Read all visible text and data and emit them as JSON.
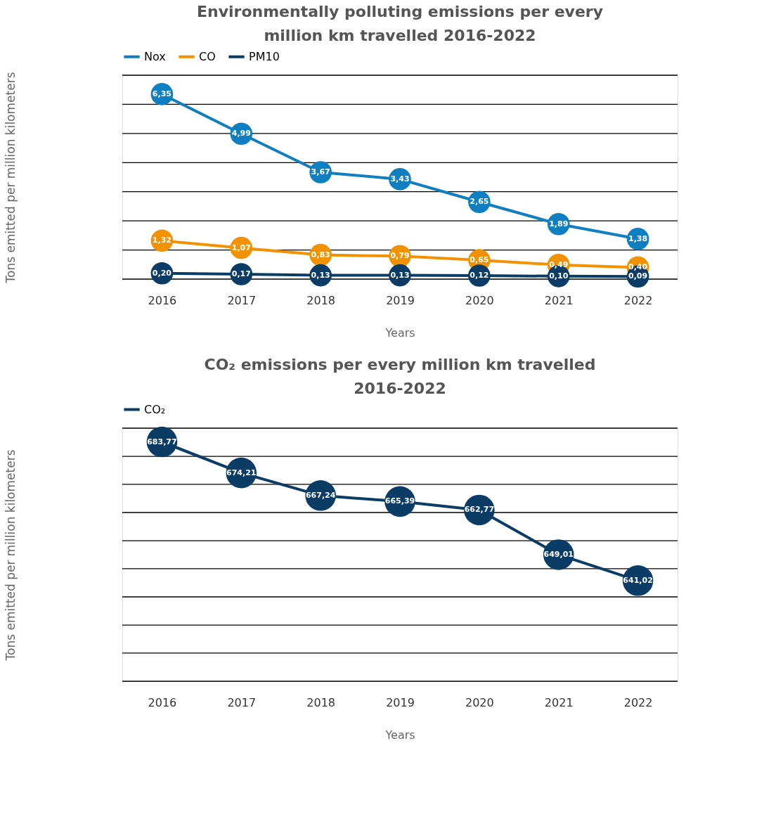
{
  "chart_data": [
    {
      "type": "line",
      "title": "Environmentally polluting emissions per every million km travelled 2016-2022",
      "xlabel": "Years",
      "ylabel": "Tons emitted per million kilometers",
      "categories": [
        "2016",
        "2017",
        "2018",
        "2019",
        "2020",
        "2021",
        "2022"
      ],
      "series": [
        {
          "name": "Nox",
          "color": "#0f7fc1",
          "values": [
            6.35,
            4.99,
            3.67,
            3.43,
            2.65,
            1.89,
            1.38
          ],
          "value_labels": [
            "6,35",
            "4,99",
            "3,67",
            "3,43",
            "2,65",
            "1,89",
            "1,38"
          ]
        },
        {
          "name": "CO",
          "color": "#f39200",
          "values": [
            1.32,
            1.07,
            0.83,
            0.79,
            0.65,
            0.49,
            0.4
          ],
          "value_labels": [
            "1,32",
            "1,07",
            "0,83",
            "0,79",
            "0,65",
            "0,49",
            "0,40"
          ]
        },
        {
          "name": "PM10",
          "color": "#0b3c66",
          "values": [
            0.2,
            0.17,
            0.13,
            0.13,
            0.12,
            0.1,
            0.09
          ],
          "value_labels": [
            "0,20",
            "0,17",
            "0,13",
            "0,13",
            "0,12",
            "0,10",
            "0,09"
          ]
        }
      ],
      "ylim": [
        0,
        7
      ],
      "yticks": [
        {
          "value": 0,
          "label": null
        },
        {
          "value": 1,
          "label": null
        },
        {
          "value": 2,
          "label": null
        },
        {
          "value": 3,
          "label": null
        },
        {
          "value": 4,
          "label": null
        },
        {
          "value": 5,
          "label": null
        },
        {
          "value": 6,
          "label": null
        },
        {
          "value": 7,
          "label": null
        }
      ],
      "grid": "y",
      "legend": "top",
      "marker": "circle",
      "line_style": "solid",
      "tick_labels": "x"
    },
    {
      "type": "line",
      "title": "CO₂ emissions per every million km travelled 2016-2022",
      "xlabel": "Years",
      "ylabel": "Tons emitted per million kilometers",
      "categories": [
        "2016",
        "2017",
        "2018",
        "2019",
        "2020",
        "2021",
        "2022"
      ],
      "series": [
        {
          "name": "CO₂",
          "color": "#0b3c66",
          "values": [
            683.77,
            674.21,
            667.24,
            665.39,
            662.77,
            649.01,
            641.02
          ],
          "value_labels": [
            "683,77",
            "674,21",
            "667,24",
            "665,39",
            "662,77",
            "649,01",
            "641,02"
          ]
        }
      ],
      "ylim": [
        610,
        688
      ],
      "yticks": [
        {
          "value": 610,
          "label": null
        },
        {
          "value": 618.7,
          "label": null
        },
        {
          "value": 627.3,
          "label": null
        },
        {
          "value": 636,
          "label": null
        },
        {
          "value": 644.7,
          "label": null
        },
        {
          "value": 653.3,
          "label": null
        },
        {
          "value": 662,
          "label": null
        },
        {
          "value": 670.7,
          "label": null
        },
        {
          "value": 679.3,
          "label": null
        },
        {
          "value": 688,
          "label": null
        }
      ],
      "grid": "y",
      "legend": "top",
      "marker": "circle",
      "line_style": "solid",
      "tick_labels": "x"
    }
  ]
}
